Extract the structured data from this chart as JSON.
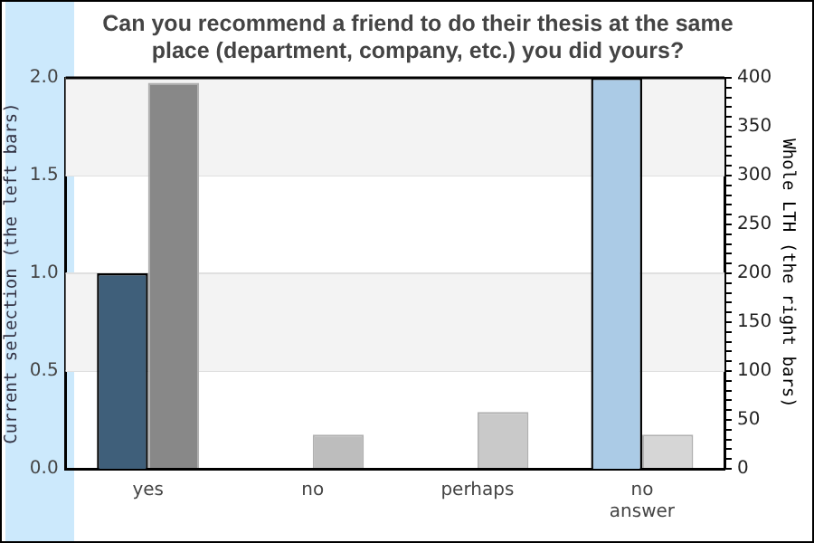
{
  "chart_data": {
    "type": "bar",
    "title": "Can you recommend a friend to do their thesis at the same place (department, company, etc.) you did yours?",
    "ylabel": "Current selection (the left bars)",
    "y2label": "Whole LTH (the right bars)",
    "categories": [
      "yes",
      "no",
      "perhaps",
      "no answer"
    ],
    "series": [
      {
        "colors": [
          "#3f5f7a",
          "#3f5f7a",
          "#3f5f7a",
          "#abcbe6"
        ],
        "values": [
          1,
          0,
          0,
          2
        ]
      },
      {
        "axis": "y2",
        "colors": [
          "#888888",
          "#bdbdbd",
          "#c9c9c9",
          "#d6d6d6"
        ],
        "values": [
          395,
          35,
          58,
          35
        ]
      }
    ],
    "ylim": [
      0,
      2
    ],
    "yticks": [
      {
        "value": 0,
        "label": "0.0"
      },
      {
        "value": 0.5,
        "label": "0.5"
      },
      {
        "value": 1,
        "label": "1.0"
      },
      {
        "value": 1.5,
        "label": "1.5"
      },
      {
        "value": 2,
        "label": "2.0"
      }
    ],
    "y2lim": [
      0,
      400
    ],
    "y2ticks": [
      0,
      {
        "value": 10,
        "label": null
      },
      {
        "value": 20,
        "label": null
      },
      {
        "value": 30,
        "label": null
      },
      {
        "value": 40,
        "label": null
      },
      50,
      {
        "value": 60,
        "label": null
      },
      {
        "value": 70,
        "label": null
      },
      {
        "value": 80,
        "label": null
      },
      {
        "value": 90,
        "label": null
      },
      100,
      {
        "value": 110,
        "label": null
      },
      {
        "value": 120,
        "label": null
      },
      {
        "value": 130,
        "label": null
      },
      {
        "value": 140,
        "label": null
      },
      150,
      {
        "value": 160,
        "label": null
      },
      {
        "value": 170,
        "label": null
      },
      {
        "value": 180,
        "label": null
      },
      {
        "value": 190,
        "label": null
      },
      200,
      {
        "value": 210,
        "label": null
      },
      {
        "value": 220,
        "label": null
      },
      {
        "value": 230,
        "label": null
      },
      {
        "value": 240,
        "label": null
      },
      250,
      {
        "value": 260,
        "label": null
      },
      {
        "value": 270,
        "label": null
      },
      {
        "value": 280,
        "label": null
      },
      {
        "value": 290,
        "label": null
      },
      300,
      {
        "value": 310,
        "label": null
      },
      {
        "value": 320,
        "label": null
      },
      {
        "value": 330,
        "label": null
      },
      {
        "value": 340,
        "label": null
      },
      350,
      {
        "value": 360,
        "label": null
      },
      {
        "value": 370,
        "label": null
      },
      {
        "value": 380,
        "label": null
      },
      {
        "value": 390,
        "label": null
      },
      400
    ],
    "grid": "y",
    "legend": false
  }
}
